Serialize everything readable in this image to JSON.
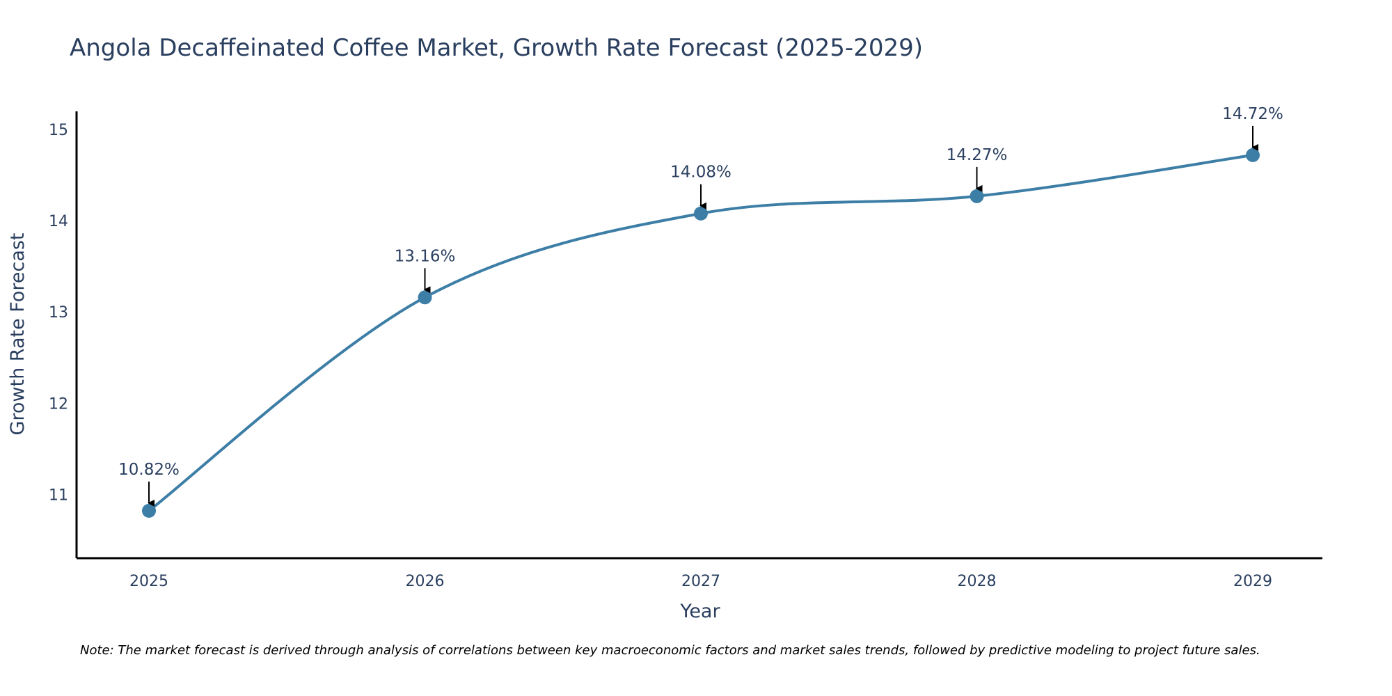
{
  "chart_data": {
    "type": "line",
    "title": "Angola Decaffeinated Coffee Market, Growth Rate Forecast (2025-2029)",
    "xlabel": "Year",
    "ylabel": "Growth Rate Forecast",
    "categories": [
      "2025",
      "2026",
      "2027",
      "2028",
      "2029"
    ],
    "series": [
      {
        "name": "Growth Rate Forecast",
        "values": [
          10.82,
          13.16,
          14.08,
          14.27,
          14.72
        ],
        "labels": [
          "10.82%",
          "13.16%",
          "14.08%",
          "14.27%",
          "14.72%"
        ]
      }
    ],
    "ylim": [
      10.3,
      15.2
    ],
    "yticks": [
      "11",
      "12",
      "13",
      "14",
      "15"
    ],
    "grid": false,
    "legend": "none",
    "line_shape": "spline",
    "colors": {
      "line": "#3d7ea6",
      "marker": "#3d7ea6",
      "axis": "#000000",
      "arrow": "#000000",
      "text": "#2a3f5f"
    },
    "note": "Note: The market forecast is derived through analysis of correlations between key macroeconomic factors and market sales trends, followed by predictive modeling to project future sales."
  }
}
